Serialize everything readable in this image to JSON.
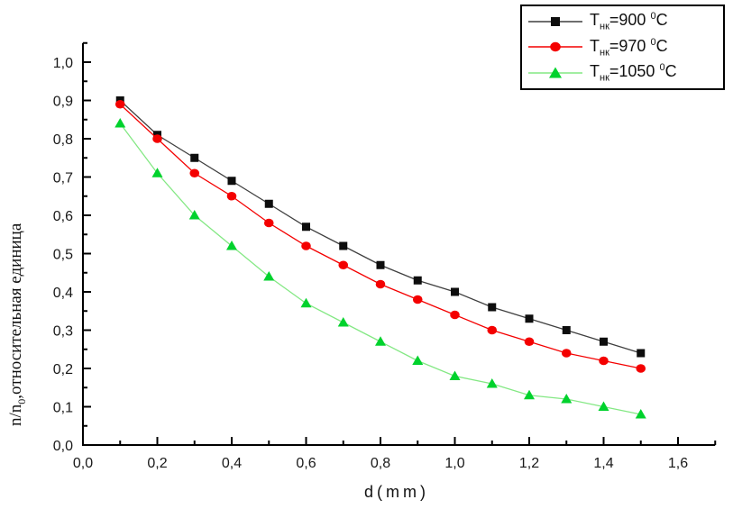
{
  "figure": {
    "background": "#ffffff"
  },
  "chart_data": {
    "type": "line",
    "title": "",
    "xlabel": "d(mm)",
    "ylabel_parts": {
      "pre": "n/n",
      "sub": "0",
      "post": ",относительная единица"
    },
    "xlim": [
      0,
      1.7
    ],
    "ylim": [
      0,
      1.05
    ],
    "grid": false,
    "legend_position": "top-right",
    "decimal_separator": ",",
    "x": [
      0.1,
      0.2,
      0.3,
      0.4,
      0.5,
      0.6,
      0.7,
      0.8,
      0.9,
      1.0,
      1.1,
      1.2,
      1.3,
      1.4,
      1.5
    ],
    "series": [
      {
        "id": "t900",
        "label_parts": {
          "base": "T",
          "sub": "нк",
          "eq": "=900 ",
          "sup": "0",
          "unit": "C"
        },
        "marker": "square",
        "marker_color": "#0d0d0d",
        "line_color": "#3f3f3f",
        "values": [
          0.9,
          0.81,
          0.75,
          0.69,
          0.63,
          0.57,
          0.52,
          0.47,
          0.43,
          0.4,
          0.36,
          0.33,
          0.3,
          0.27,
          0.24
        ]
      },
      {
        "id": "t970",
        "label_parts": {
          "base": "T",
          "sub": "нк",
          "eq": "=970 ",
          "sup": "0",
          "unit": "C"
        },
        "marker": "circle",
        "marker_color": "#f40000",
        "line_color": "#f40000",
        "values": [
          0.89,
          0.8,
          0.71,
          0.65,
          0.58,
          0.52,
          0.47,
          0.42,
          0.38,
          0.34,
          0.3,
          0.27,
          0.24,
          0.22,
          0.2
        ]
      },
      {
        "id": "t1050",
        "label_parts": {
          "base": "T",
          "sub": "нк",
          "eq": "=1050 ",
          "sup": "0",
          "unit": "C"
        },
        "marker": "triangle-up",
        "marker_color": "#00d22d",
        "line_color": "#84e884",
        "values": [
          0.84,
          0.71,
          0.6,
          0.52,
          0.44,
          0.37,
          0.32,
          0.27,
          0.22,
          0.18,
          0.16,
          0.13,
          0.12,
          0.1,
          0.08
        ]
      }
    ],
    "x_major_ticks": {
      "values": [
        0,
        0.2,
        0.4,
        0.6,
        0.8,
        1.0,
        1.2,
        1.4,
        1.6
      ],
      "labels": [
        "0,0",
        "0,2",
        "0,4",
        "0,6",
        "0,8",
        "1,0",
        "1,2",
        "1,4",
        "1,6"
      ]
    },
    "x_minor_ticks": [
      0.1,
      0.3,
      0.5,
      0.7,
      0.9,
      1.1,
      1.3,
      1.5,
      1.7
    ],
    "y_major_ticks": {
      "values": [
        0,
        0.1,
        0.2,
        0.3,
        0.4,
        0.5,
        0.6,
        0.7,
        0.8,
        0.9,
        1.0
      ],
      "labels": [
        "0,0",
        "0,1",
        "0,2",
        "0,3",
        "0,4",
        "0,5",
        "0,6",
        "0,7",
        "0,8",
        "0,9",
        "1,0"
      ]
    },
    "y_minor_ticks": [
      0.05,
      0.15,
      0.25,
      0.35,
      0.45,
      0.55,
      0.65,
      0.75,
      0.85,
      0.95,
      1.05
    ],
    "axis_color": "#000000",
    "text_color": "#191919"
  }
}
